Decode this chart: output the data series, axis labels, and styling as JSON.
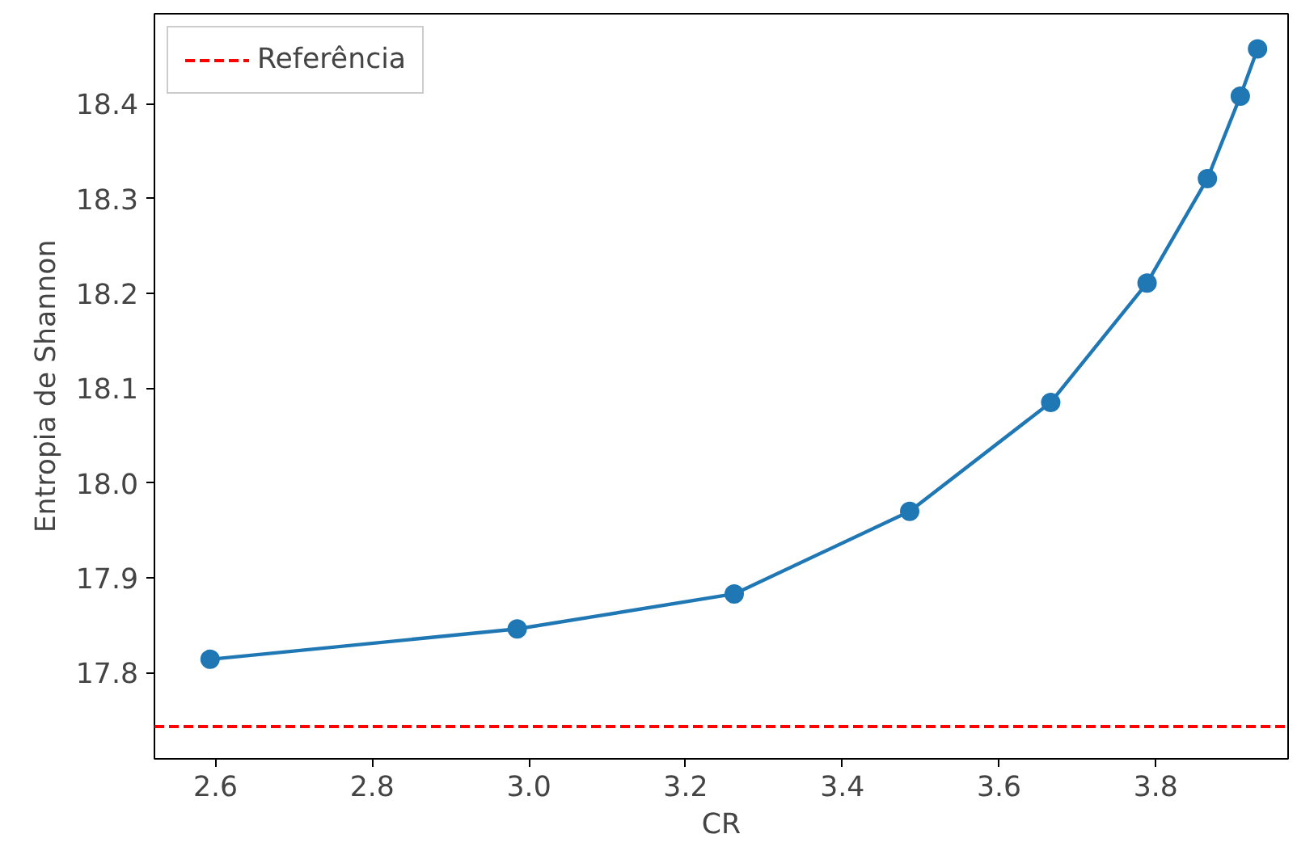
{
  "chart_data": {
    "type": "line",
    "xlabel": "CR",
    "ylabel": "Entropia de Shannon",
    "x": [
      2.593,
      2.985,
      3.262,
      3.486,
      3.666,
      3.789,
      3.866,
      3.908,
      3.93
    ],
    "series": [
      {
        "color": "#1f77b4",
        "values": [
          17.814,
          17.846,
          17.883,
          17.97,
          18.085,
          18.211,
          18.321,
          18.408,
          18.458
        ]
      }
    ],
    "marker": "circle",
    "line_style": "solid",
    "xlim": [
      2.522,
      3.969
    ],
    "ylim": [
      17.709,
      18.495
    ],
    "xticks": [
      2.6,
      2.8,
      {
        "value": 3,
        "label": "3.0"
      },
      3.2,
      3.4,
      3.6,
      3.8
    ],
    "yticks": [
      17.8,
      17.9,
      {
        "value": 18,
        "label": "18.0"
      },
      18.1,
      18.2,
      18.3,
      18.4
    ],
    "ref_lines": [
      {
        "axis": "y",
        "value": 17.743,
        "label": "Referência",
        "color": "#ff0000",
        "line_style": "dashed"
      }
    ],
    "grid": false,
    "legend": "top left"
  }
}
